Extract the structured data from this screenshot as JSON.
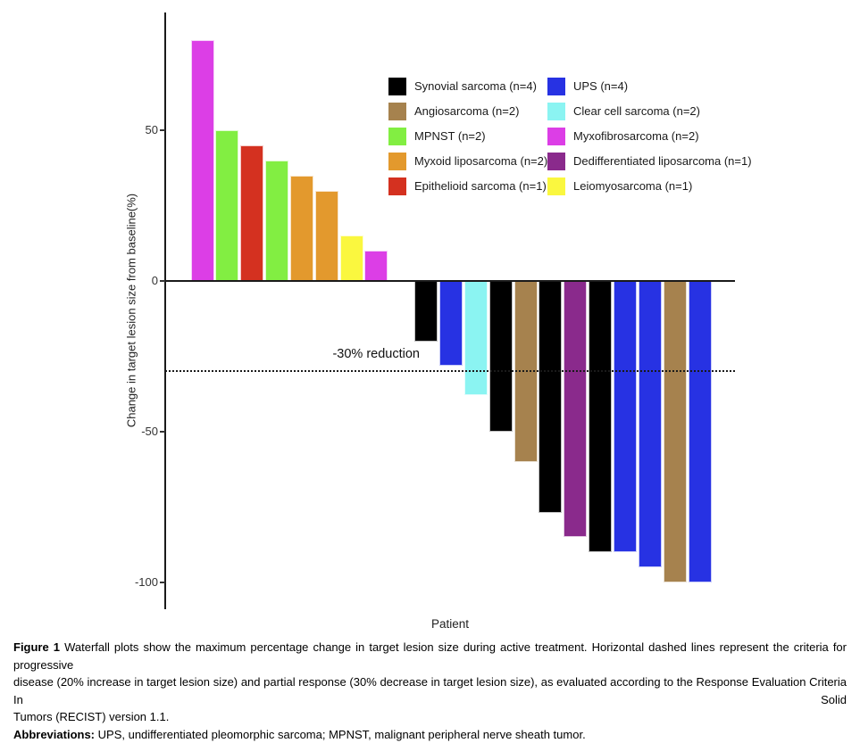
{
  "figure": {
    "y_axis_label": "Change in target lesion size from baseline(%)",
    "x_axis_label": "Patient",
    "annotation_label": "-30% reduction"
  },
  "legend": {
    "columns": [
      [
        {
          "label": "Synovial sarcoma (n=4)",
          "category": "Synovial sarcoma"
        },
        {
          "label": "Angiosarcoma (n=2)",
          "category": "Angiosarcoma"
        },
        {
          "label": "MPNST (n=2)",
          "category": "MPNST"
        },
        {
          "label": "Myxoid liposarcoma (n=2)",
          "category": "Myxoid liposarcoma"
        },
        {
          "label": "Epithelioid sarcoma (n=1)",
          "category": "Epithelioid sarcoma"
        }
      ],
      [
        {
          "label": "UPS (n=4)",
          "category": "UPS"
        },
        {
          "label": "Clear cell sarcoma (n=2)",
          "category": "Clear cell sarcoma"
        },
        {
          "label": "Myxofibrosarcoma (n=2)",
          "category": "Myxofibrosarcoma"
        },
        {
          "label": "Dedifferentiated liposarcoma (n=1)",
          "category": "Dedifferentiated liposarcoma"
        },
        {
          "label": "Leiomyosarcoma (n=1)",
          "category": "Leiomyosarcoma"
        }
      ]
    ]
  },
  "chart_data": {
    "type": "bar",
    "title": "",
    "xlabel": "Patient",
    "ylabel": "Change in target lesion size from baseline(%)",
    "ylim": [
      -109,
      89
    ],
    "y_ticks": [
      50,
      0,
      -50,
      -100
    ],
    "grid": false,
    "legend_position": "inside-top-right",
    "reference_lines": [
      {
        "y": 0,
        "style": "solid"
      },
      {
        "y": -30,
        "style": "dotted",
        "label": "-30% reduction"
      }
    ],
    "colors": {
      "Synovial sarcoma": "#000000",
      "Angiosarcoma": "#A6824E",
      "MPNST": "#82EE42",
      "Myxoid liposarcoma": "#E3992D",
      "Epithelioid sarcoma": "#D43120",
      "UPS": "#2732E3",
      "Clear cell sarcoma": "#8BF4F2",
      "Myxofibrosarcoma": "#DC3EE6",
      "Dedifferentiated liposarcoma": "#8A2A8C",
      "Leiomyosarcoma": "#FAF73F"
    },
    "patients": [
      {
        "x": 1,
        "value": 80,
        "category": "Myxofibrosarcoma"
      },
      {
        "x": 2,
        "value": 50,
        "category": "MPNST"
      },
      {
        "x": 3,
        "value": 45,
        "category": "Epithelioid sarcoma"
      },
      {
        "x": 4,
        "value": 40,
        "category": "MPNST"
      },
      {
        "x": 5,
        "value": 35,
        "category": "Myxoid liposarcoma"
      },
      {
        "x": 6,
        "value": 30,
        "category": "Myxoid liposarcoma"
      },
      {
        "x": 7,
        "value": 15,
        "category": "Leiomyosarcoma"
      },
      {
        "x": 8,
        "value": 10,
        "category": "Myxofibrosarcoma"
      },
      {
        "x": 9,
        "value": 0,
        "category": "Clear cell sarcoma"
      },
      {
        "x": 10,
        "value": -20,
        "category": "Synovial sarcoma"
      },
      {
        "x": 11,
        "value": -28,
        "category": "UPS"
      },
      {
        "x": 12,
        "value": -38,
        "category": "Clear cell sarcoma"
      },
      {
        "x": 13,
        "value": -50,
        "category": "Synovial sarcoma"
      },
      {
        "x": 14,
        "value": -60,
        "category": "Angiosarcoma"
      },
      {
        "x": 15,
        "value": -77,
        "category": "Synovial sarcoma"
      },
      {
        "x": 16,
        "value": -85,
        "category": "Dedifferentiated liposarcoma"
      },
      {
        "x": 17,
        "value": -90,
        "category": "Synovial sarcoma"
      },
      {
        "x": 18,
        "value": -90,
        "category": "UPS"
      },
      {
        "x": 19,
        "value": -95,
        "category": "UPS"
      },
      {
        "x": 20,
        "value": -100,
        "category": "Angiosarcoma"
      },
      {
        "x": 21,
        "value": -100,
        "category": "UPS"
      }
    ]
  },
  "caption": {
    "figure_label": "Figure 1",
    "line1": "Waterfall plots show the maximum percentage change in target lesion size during active treatment. Horizontal dashed lines represent the criteria for progressive",
    "line2": "disease (20% increase in target lesion size) and partial response (30% decrease in target lesion size), as evaluated according to the Response Evaluation Criteria In Solid",
    "line3": "Tumors (RECIST) version 1.1.",
    "abbrev_label": "Abbreviations:",
    "abbrev_text": "UPS, undifferentiated pleomorphic sarcoma; MPNST, malignant peripheral nerve sheath tumor."
  }
}
